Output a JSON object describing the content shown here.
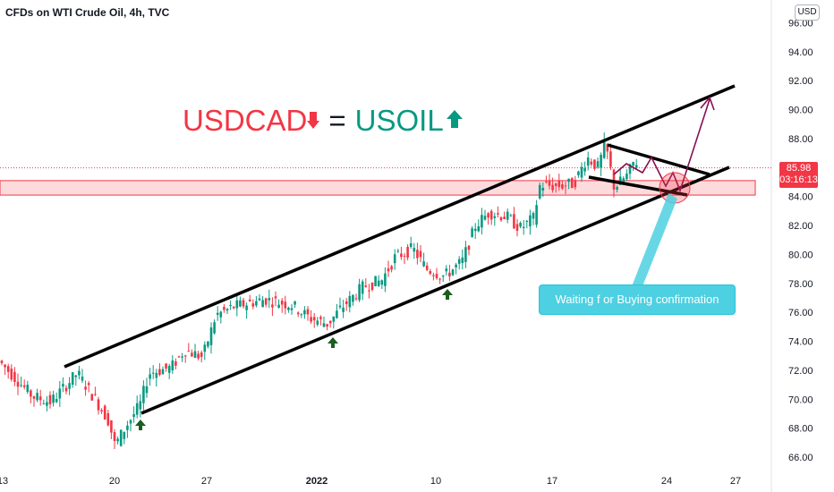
{
  "header": {
    "title": "CFDs on WTI Crude Oil, 4h, TVC",
    "currency": "USD"
  },
  "annotation": {
    "left_text": "USDCAD",
    "equals": "=",
    "right_text": "USOIL",
    "callout": "Waiting f or Buying confirmation"
  },
  "price_tag": {
    "price": "85.98",
    "countdown": "03:16:13"
  },
  "colors": {
    "up": "#089981",
    "down": "#f23645",
    "zone": "#f23645",
    "callout": "#4dd0e1",
    "projection": "#880e4f",
    "arrow_marker": "#1b5e20"
  },
  "chart_data": {
    "type": "candlestick",
    "title": "CFDs on WTI Crude Oil, 4h, TVC",
    "ylim": [
      65.2,
      97.2
    ],
    "yticks": [
      66,
      68,
      70,
      72,
      74,
      76,
      78,
      80,
      82,
      84,
      86,
      88,
      90,
      92,
      94,
      96
    ],
    "xticks": [
      "13",
      "20",
      "27",
      "2022",
      "10",
      "17",
      "24",
      "27"
    ],
    "last_price": 85.98,
    "support_zone": [
      84.1,
      85.1
    ],
    "channel_upper": [
      [
        72.1,
        72.1
      ],
      [
        89.7,
        91.4
      ]
    ],
    "anchor_points": [
      {
        "x": 0,
        "y": 0
      }
    ]
  },
  "channel": {
    "upper": {
      "p1": [
        "Dec 17",
        72.2
      ],
      "p2": [
        "Jan 27",
        91.5
      ]
    },
    "lower": {
      "p1": [
        "Dec 22",
        68.9
      ],
      "p2": [
        "Jan 27",
        86.0
      ]
    }
  }
}
